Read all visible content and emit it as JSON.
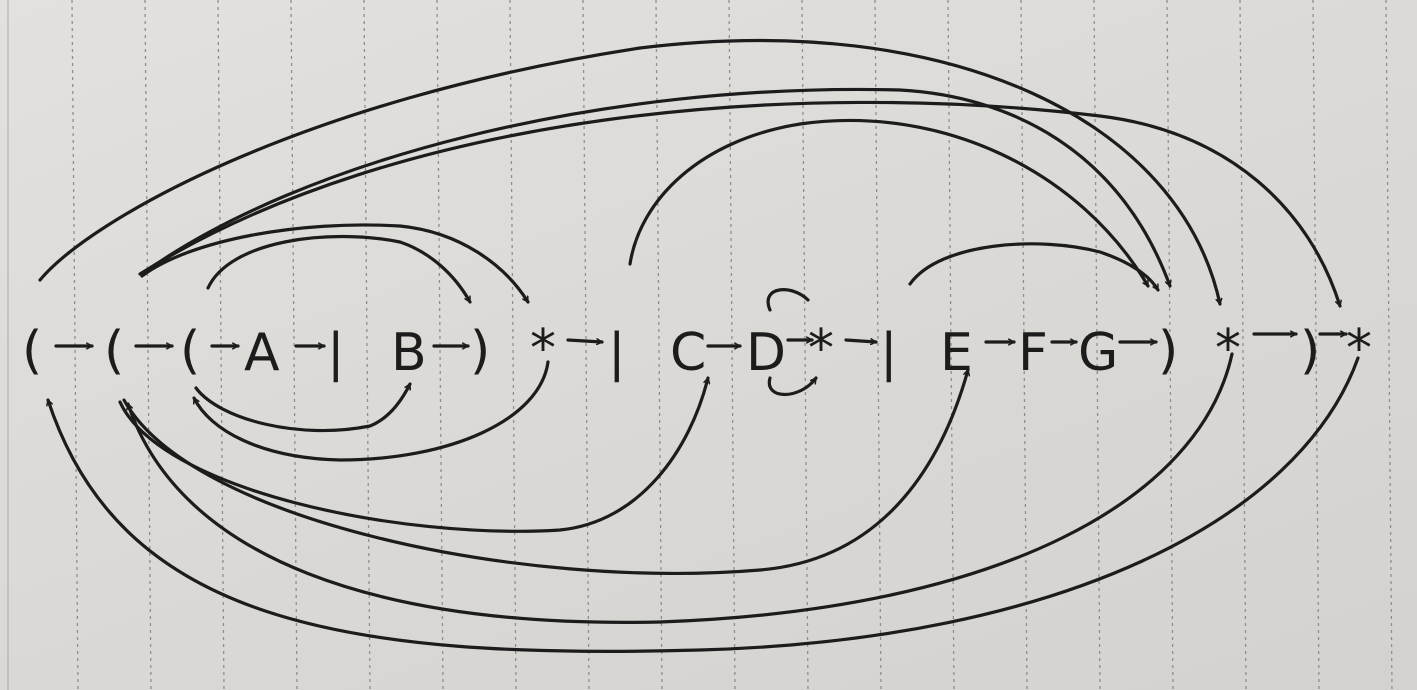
{
  "diagram": {
    "tokens": [
      {
        "id": "t1",
        "text": "("
      },
      {
        "id": "t2",
        "text": "("
      },
      {
        "id": "t3",
        "text": "("
      },
      {
        "id": "t4",
        "text": "A"
      },
      {
        "id": "t5",
        "text": "|"
      },
      {
        "id": "t6",
        "text": "B"
      },
      {
        "id": "t7",
        "text": ")"
      },
      {
        "id": "t8",
        "text": "*"
      },
      {
        "id": "t9",
        "text": "|"
      },
      {
        "id": "t10",
        "text": "C"
      },
      {
        "id": "t11",
        "text": "D"
      },
      {
        "id": "t12",
        "text": "*"
      },
      {
        "id": "t13",
        "text": "|"
      },
      {
        "id": "t14",
        "text": "E"
      },
      {
        "id": "t15",
        "text": "F"
      },
      {
        "id": "t16",
        "text": "G"
      },
      {
        "id": "t17",
        "text": ")"
      },
      {
        "id": "t18",
        "text": "*"
      },
      {
        "id": "t19",
        "text": ")"
      },
      {
        "id": "t20",
        "text": "*"
      }
    ],
    "edges": [
      {
        "from": "t1",
        "to": "t2"
      },
      {
        "from": "t2",
        "to": "t3"
      },
      {
        "from": "t3",
        "to": "t4"
      },
      {
        "from": "t4",
        "to": "t5"
      },
      {
        "from": "t6",
        "to": "t7"
      },
      {
        "from": "t8",
        "to": "t9"
      },
      {
        "from": "t10",
        "to": "t11"
      },
      {
        "from": "t11",
        "to": "t12"
      },
      {
        "from": "t12",
        "to": "t13"
      },
      {
        "from": "t14",
        "to": "t15"
      },
      {
        "from": "t15",
        "to": "t16"
      },
      {
        "from": "t16",
        "to": "t17"
      },
      {
        "from": "t18",
        "to": "t19"
      },
      {
        "from": "t19",
        "to": "t20"
      },
      {
        "from": "t3",
        "to": "t7"
      },
      {
        "from": "t2",
        "to": "t8"
      },
      {
        "from": "t3",
        "to": "t6"
      },
      {
        "from": "t8",
        "to": "t3"
      },
      {
        "from": "t11",
        "to": "t11"
      },
      {
        "from": "t9",
        "to": "t17"
      },
      {
        "from": "t2",
        "to": "t17"
      },
      {
        "from": "t13",
        "to": "t17"
      },
      {
        "from": "t1",
        "to": "t18"
      },
      {
        "from": "t2",
        "to": "t20"
      },
      {
        "from": "t2",
        "to": "t10"
      },
      {
        "from": "t2",
        "to": "t14"
      },
      {
        "from": "t18",
        "to": "t2"
      },
      {
        "from": "t20",
        "to": "t1"
      }
    ]
  }
}
